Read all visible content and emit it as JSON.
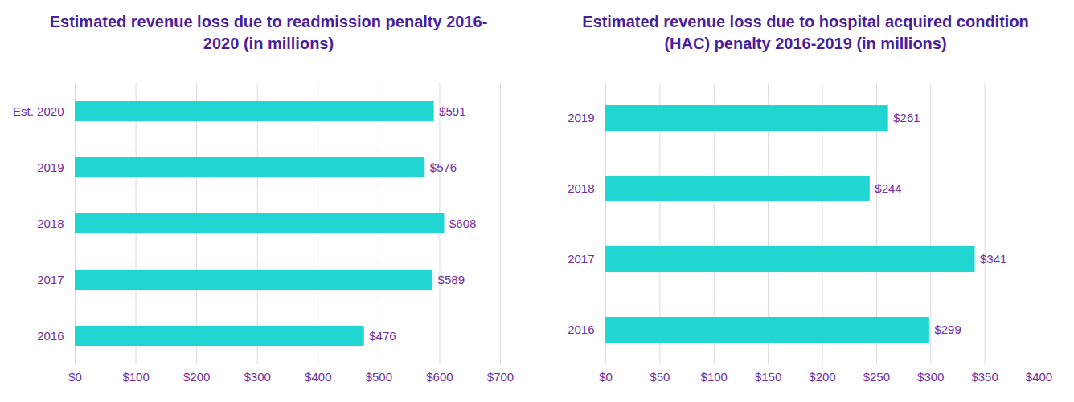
{
  "chart_data": [
    {
      "type": "bar",
      "orientation": "horizontal",
      "title": "Estimated revenue loss due to readmission penalty 2016-2020 (in millions)",
      "categories": [
        "Est. 2020",
        "2019",
        "2018",
        "2017",
        "2016"
      ],
      "values": [
        591,
        576,
        608,
        589,
        476
      ],
      "value_labels": [
        "$591",
        "$576",
        "$608",
        "$589",
        "$476"
      ],
      "data_labels": true,
      "color": "#21d6d1",
      "xlim": [
        0,
        700
      ],
      "xticks": [
        {
          "value": 0,
          "label": "$0"
        },
        {
          "value": 100,
          "label": "$100"
        },
        {
          "value": 200,
          "label": "$200"
        },
        {
          "value": 300,
          "label": "$300"
        },
        {
          "value": 400,
          "label": "$400"
        },
        {
          "value": 500,
          "label": "$500"
        },
        {
          "value": 600,
          "label": "$600"
        },
        {
          "value": 700,
          "label": "$700"
        }
      ],
      "grid": true
    },
    {
      "type": "bar",
      "orientation": "horizontal",
      "title": "Estimated revenue loss due to hospital acquired condition (HAC) penalty 2016-2019 (in millions)",
      "categories": [
        "2019",
        "2018",
        "2017",
        "2016"
      ],
      "values": [
        261,
        244,
        341,
        299
      ],
      "value_labels": [
        "$261",
        "$244",
        "$341",
        "$299"
      ],
      "data_labels": true,
      "color": "#21d6d1",
      "xlim": [
        0,
        400
      ],
      "xticks": [
        {
          "value": 0,
          "label": "$0"
        },
        {
          "value": 50,
          "label": "$50"
        },
        {
          "value": 100,
          "label": "$100"
        },
        {
          "value": 150,
          "label": "$150"
        },
        {
          "value": 200,
          "label": "$200"
        },
        {
          "value": 250,
          "label": "$250"
        },
        {
          "value": 300,
          "label": "$300"
        },
        {
          "value": 350,
          "label": "$350"
        },
        {
          "value": 400,
          "label": "$400"
        }
      ],
      "grid": true
    }
  ]
}
